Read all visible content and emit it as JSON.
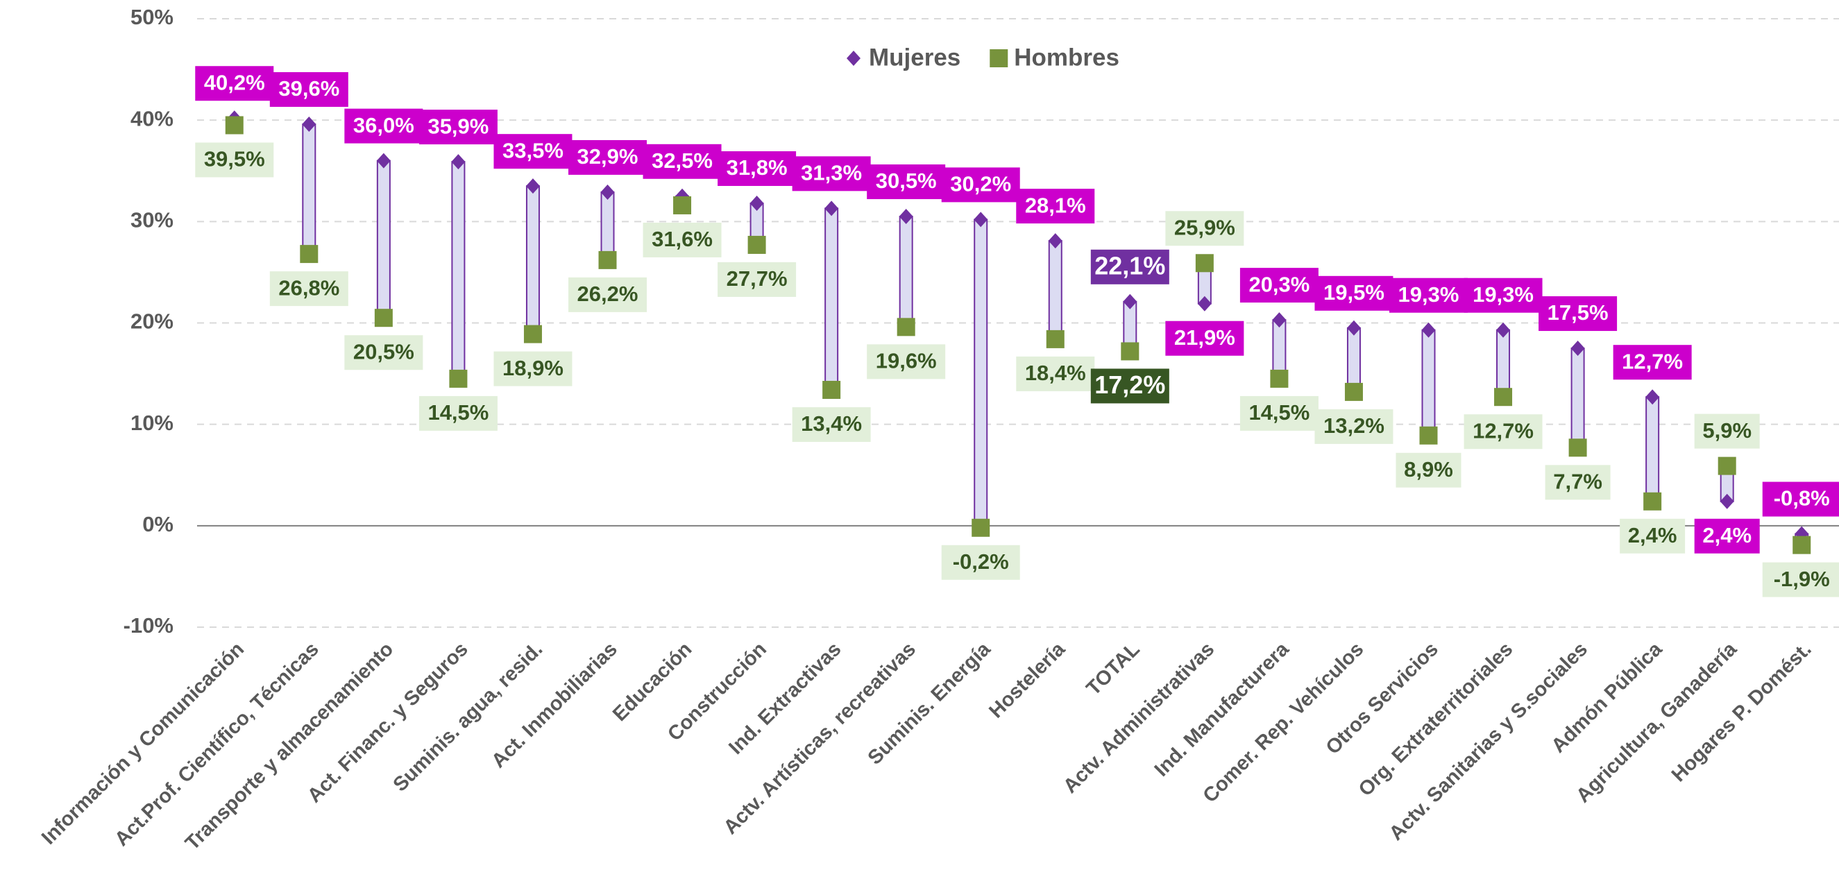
{
  "chart_data": {
    "type": "dotrange",
    "categories": [
      "Información y Comunicación",
      "Act.Prof. Científico, Técnicas",
      "Transporte y almacenamiento",
      "Act. Financ. y Seguros",
      "Suminis. agua, resid.",
      "Act. Inmobiliarias",
      "Educación",
      "Construcción",
      "Ind. Extractivas",
      "Actv. Artísticas, recreativas",
      "Suminis. Energía",
      "Hostelería",
      "TOTAL",
      "Actv. Administrativas",
      "Ind. Manufacturera",
      "Comer. Rep. Vehículos",
      "Otros Servicios",
      "Org. Extraterritoriales",
      "Actv. Sanitarias y S.sociales",
      "Admón Pública",
      "Agricultura, Ganadería",
      "Hogares P. Domést."
    ],
    "series": [
      {
        "name": "Mujeres",
        "color": "#7030a0",
        "marker": "diamond",
        "values": [
          40.2,
          39.6,
          36.0,
          35.9,
          33.5,
          32.9,
          32.5,
          31.8,
          31.3,
          30.5,
          30.2,
          28.1,
          22.1,
          21.9,
          20.3,
          19.5,
          19.3,
          19.3,
          17.5,
          12.7,
          2.4,
          -0.8
        ],
        "value_labels": [
          "40,2%",
          "39,6%",
          "36,0%",
          "35,9%",
          "33,5%",
          "32,9%",
          "32,5%",
          "31,8%",
          "31,3%",
          "30,5%",
          "30,2%",
          "28,1%",
          "22,1%",
          "21,9%",
          "20,3%",
          "19,5%",
          "19,3%",
          "19,3%",
          "17,5%",
          "12,7%",
          "2,4%",
          "-0,8%"
        ],
        "label_fill": [
          "#cc00cc",
          "#cc00cc",
          "#cc00cc",
          "#cc00cc",
          "#cc00cc",
          "#cc00cc",
          "#cc00cc",
          "#cc00cc",
          "#cc00cc",
          "#cc00cc",
          "#cc00cc",
          "#cc00cc",
          "#7030a0",
          "#cc00cc",
          "#cc00cc",
          "#cc00cc",
          "#cc00cc",
          "#cc00cc",
          "#cc00cc",
          "#cc00cc",
          "#cc00cc",
          "#cc00cc"
        ],
        "label_text": [
          "#ffffff",
          "#ffffff",
          "#ffffff",
          "#ffffff",
          "#ffffff",
          "#ffffff",
          "#ffffff",
          "#ffffff",
          "#ffffff",
          "#ffffff",
          "#ffffff",
          "#ffffff",
          "#ffffff",
          "#ffffff",
          "#ffffff",
          "#ffffff",
          "#ffffff",
          "#ffffff",
          "#ffffff",
          "#ffffff",
          "#ffffff",
          "#ffffff"
        ]
      },
      {
        "name": "Hombres",
        "color": "#77933c",
        "marker": "square",
        "values": [
          39.5,
          26.8,
          20.5,
          14.5,
          18.9,
          26.2,
          31.6,
          27.7,
          13.4,
          19.6,
          -0.2,
          18.4,
          17.2,
          25.9,
          14.5,
          13.2,
          8.9,
          12.7,
          7.7,
          2.4,
          5.9,
          -1.9
        ],
        "value_labels": [
          "39,5%",
          "26,8%",
          "20,5%",
          "14,5%",
          "18,9%",
          "26,2%",
          "31,6%",
          "27,7%",
          "13,4%",
          "19,6%",
          "-0,2%",
          "18,4%",
          "17,2%",
          "25,9%",
          "14,5%",
          "13,2%",
          "8,9%",
          "12,7%",
          "7,7%",
          "2,4%",
          "5,9%",
          "-1,9%"
        ],
        "label_fill": [
          "#e2efda",
          "#e2efda",
          "#e2efda",
          "#e2efda",
          "#e2efda",
          "#e2efda",
          "#e2efda",
          "#e2efda",
          "#e2efda",
          "#e2efda",
          "#e2efda",
          "#e2efda",
          "#375623",
          "#e2efda",
          "#e2efda",
          "#e2efda",
          "#e2efda",
          "#e2efda",
          "#e2efda",
          "#e2efda",
          "#e2efda",
          "#e2efda"
        ],
        "label_text": [
          "#375623",
          "#375623",
          "#375623",
          "#375623",
          "#375623",
          "#375623",
          "#375623",
          "#375623",
          "#375623",
          "#375623",
          "#375623",
          "#375623",
          "#ffffff",
          "#375623",
          "#375623",
          "#375623",
          "#375623",
          "#375623",
          "#375623",
          "#375623",
          "#375623",
          "#375623"
        ]
      }
    ],
    "ylim": [
      -10,
      50
    ],
    "yticks": [
      {
        "value": -10,
        "label": "-10%"
      },
      {
        "value": 0,
        "label": "0%"
      },
      {
        "value": 10,
        "label": "10%"
      },
      {
        "value": 20,
        "label": "20%"
      },
      {
        "value": 30,
        "label": "30%"
      },
      {
        "value": 40,
        "label": "40%"
      },
      {
        "value": 50,
        "label": "50%"
      }
    ],
    "grid": true,
    "legend": "top"
  }
}
